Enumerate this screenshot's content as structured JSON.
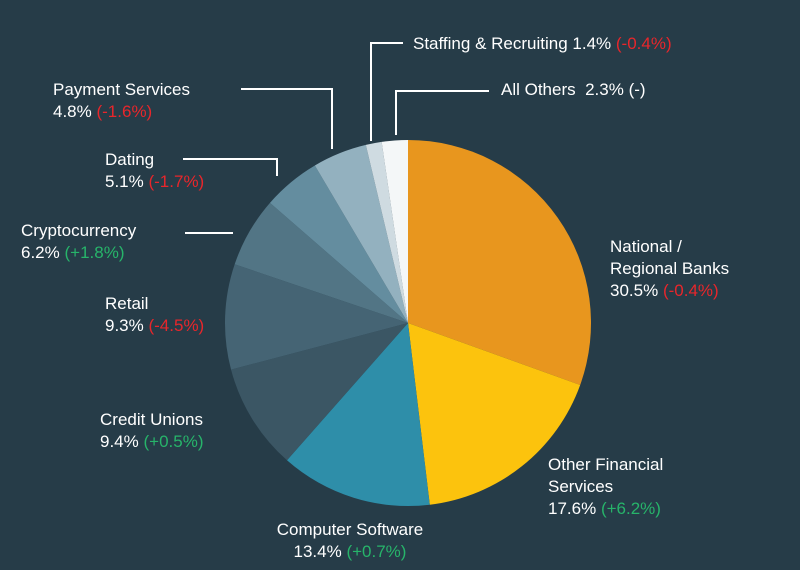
{
  "chart_data": {
    "type": "pie",
    "title": "",
    "colors": {
      "background": "#263c48",
      "negative_change": "#e8262b",
      "positive_change": "#27b46a",
      "leader_line": "#ffffff"
    },
    "slices": [
      {
        "name": "National / Regional Banks",
        "name_lines": [
          "National /",
          "Regional Banks"
        ],
        "value": 30.5,
        "value_text": "30.5%",
        "change_text": "(-0.4%)",
        "change_sign": "neg",
        "color": "#e8961e"
      },
      {
        "name": "Other Financial Services",
        "name_lines": [
          "Other Financial",
          "Services"
        ],
        "value": 17.6,
        "value_text": "17.6%",
        "change_text": "(+6.2%)",
        "change_sign": "pos",
        "color": "#fcc30d"
      },
      {
        "name": "Computer Software",
        "name_lines": [
          "Computer Software"
        ],
        "value": 13.4,
        "value_text": "13.4%",
        "change_text": "(+0.7%)",
        "change_sign": "pos",
        "color": "#2e8ea9"
      },
      {
        "name": "Credit Unions",
        "name_lines": [
          "Credit Unions"
        ],
        "value": 9.4,
        "value_text": "9.4%",
        "change_text": "(+0.5%)",
        "change_sign": "pos",
        "color": "#3b5664"
      },
      {
        "name": "Retail",
        "name_lines": [
          "Retail"
        ],
        "value": 9.3,
        "value_text": "9.3%",
        "change_text": "(-4.5%)",
        "change_sign": "neg",
        "color": "#456474"
      },
      {
        "name": "Cryptocurrency",
        "name_lines": [
          "Cryptocurrency"
        ],
        "value": 6.2,
        "value_text": "6.2%",
        "change_text": "(+1.8%)",
        "change_sign": "pos",
        "color": "#527585"
      },
      {
        "name": "Dating",
        "name_lines": [
          "Dating"
        ],
        "value": 5.1,
        "value_text": "5.1%",
        "change_text": "(-1.7%)",
        "change_sign": "neg",
        "color": "#648d9f"
      },
      {
        "name": "Payment Services",
        "name_lines": [
          "Payment Services"
        ],
        "value": 4.8,
        "value_text": "4.8%",
        "change_text": "(-1.6%)",
        "change_sign": "neg",
        "color": "#93b1bf"
      },
      {
        "name": "Staffing & Recruiting",
        "name_lines": [
          "Staffing & Recruiting"
        ],
        "value": 1.4,
        "value_text": "1.4%",
        "change_text": "(-0.4%)",
        "change_sign": "neg",
        "color": "#cfdbe1"
      },
      {
        "name": "All Others",
        "name_lines": [
          "All Others"
        ],
        "value": 2.3,
        "value_text": "2.3%",
        "change_text": "(-)",
        "change_sign": "neu",
        "color": "#f4f7f8"
      }
    ]
  }
}
